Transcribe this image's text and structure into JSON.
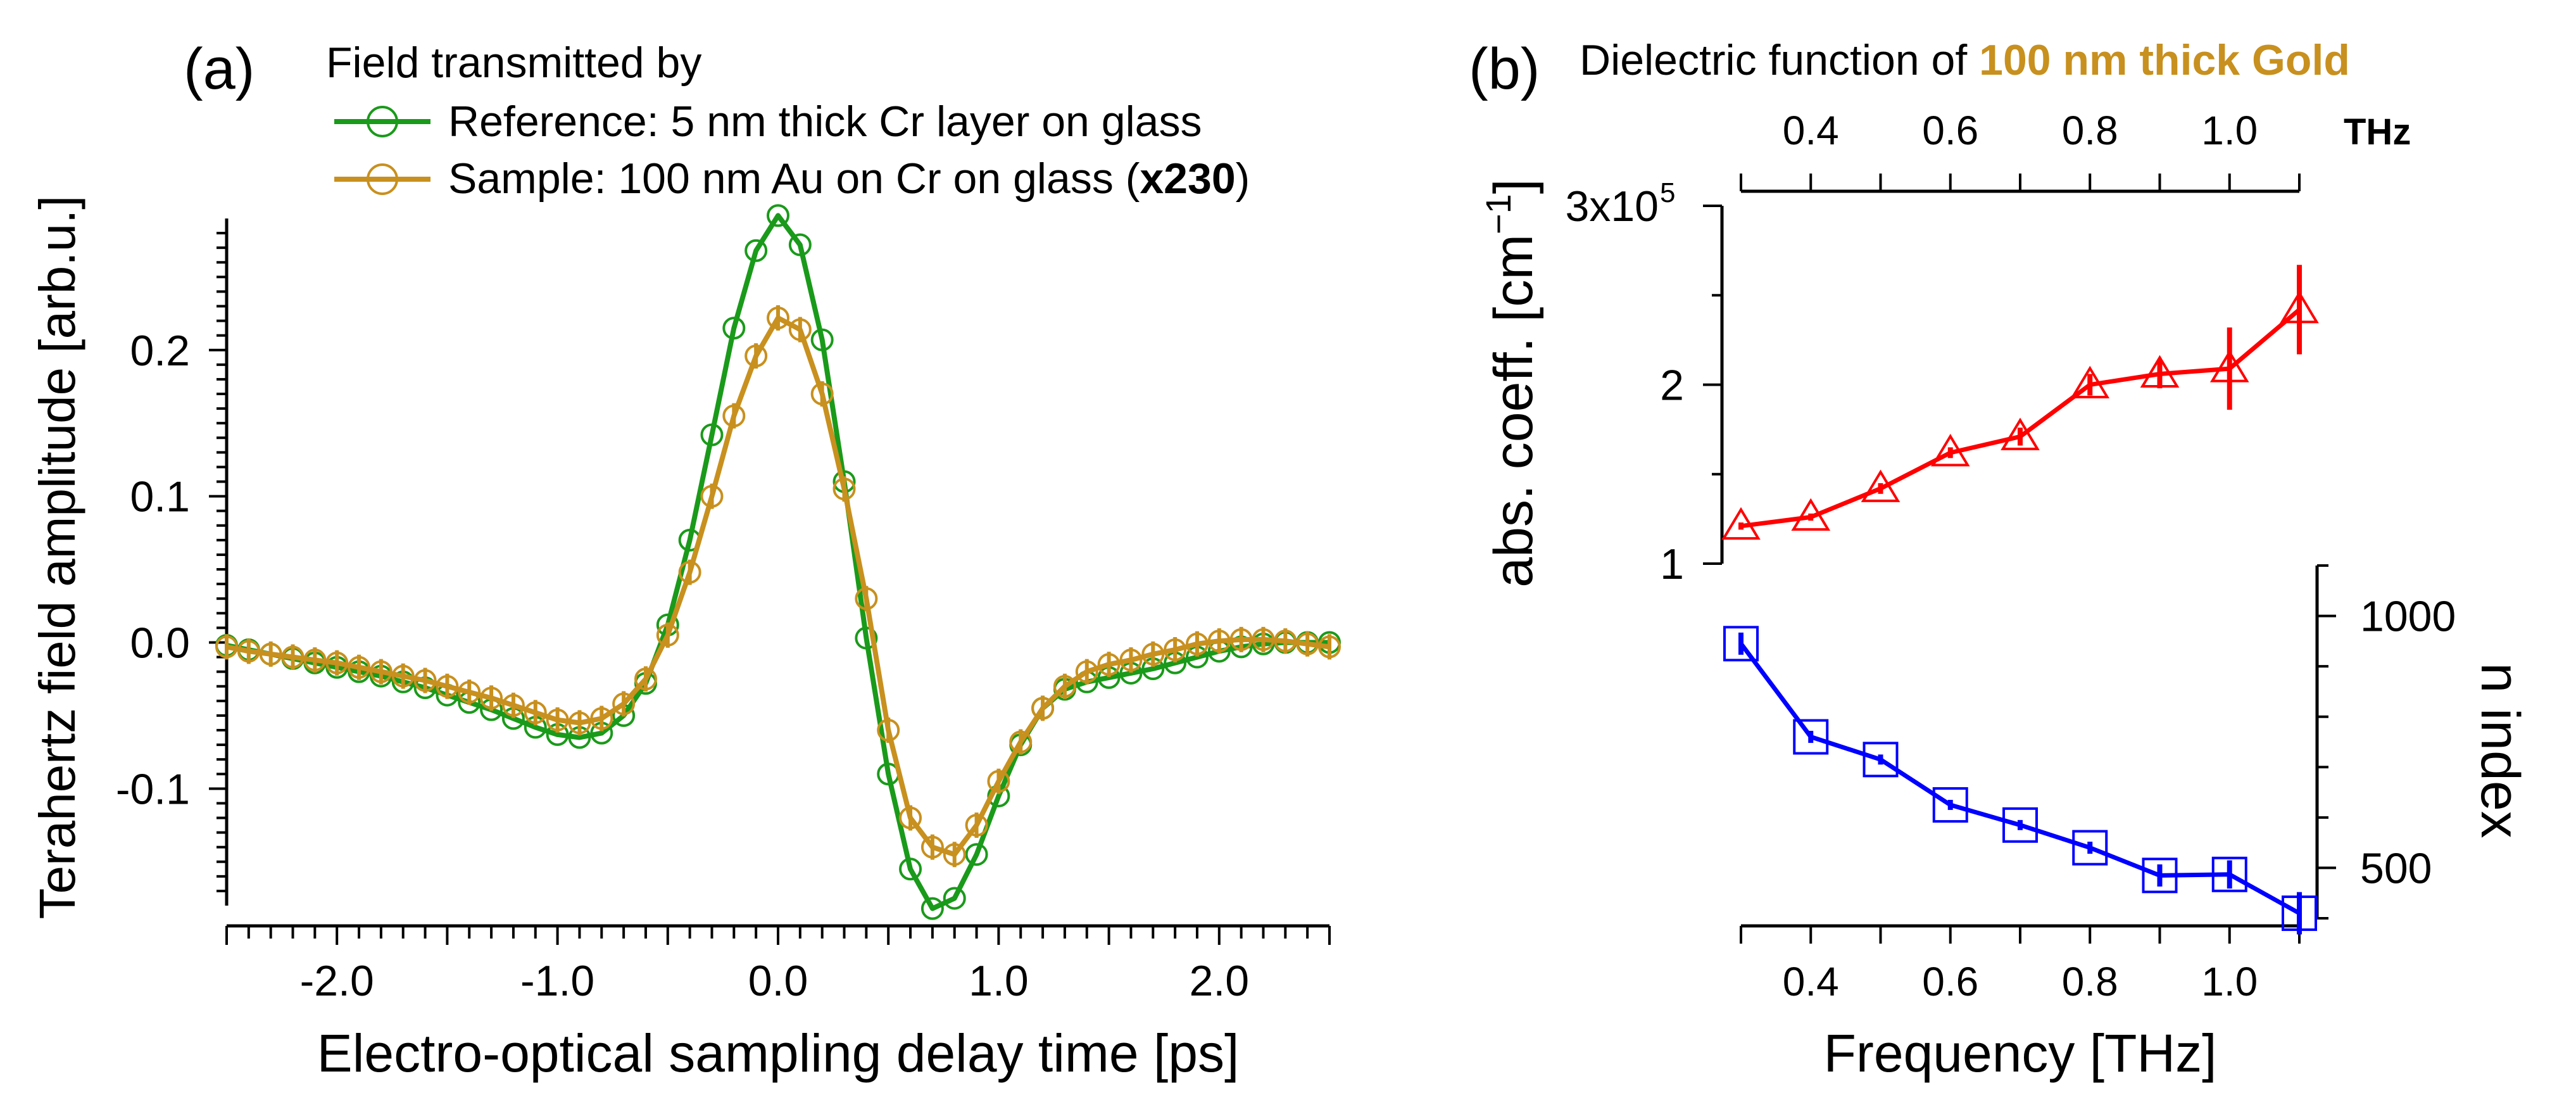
{
  "chart_data": [
    {
      "panel": "(a)",
      "type": "line",
      "legend_title": "Field transmitted by",
      "legend_position": "top",
      "xlabel": "Electro-optical sampling delay time [ps]",
      "ylabel": "Terahertz field amplitude [arb.u.]",
      "xlim": [
        -2.5,
        2.5
      ],
      "ylim": [
        -0.18,
        0.29
      ],
      "x_ticks": [
        -2.0,
        -1.0,
        0.0,
        1.0,
        2.0
      ],
      "x_tick_labels": [
        "-2.0",
        "-1.0",
        "0.0",
        "1.0",
        "2.0"
      ],
      "y_ticks": [
        -0.1,
        0.0,
        0.1,
        0.2
      ],
      "y_tick_labels": [
        "-0.1",
        "0.0",
        "0.1",
        "0.2"
      ],
      "series": [
        {
          "name": "Reference: 5 nm thick Cr layer on glass",
          "label_plain": "Reference: 5 nm thick Cr layer on glass",
          "color": "#1a9a1a",
          "marker": "circle",
          "x": [
            -2.5,
            -2.4,
            -2.3,
            -2.2,
            -2.1,
            -2.0,
            -1.9,
            -1.8,
            -1.7,
            -1.6,
            -1.5,
            -1.4,
            -1.3,
            -1.2,
            -1.1,
            -1.0,
            -0.9,
            -0.8,
            -0.7,
            -0.6,
            -0.5,
            -0.4,
            -0.3,
            -0.2,
            -0.1,
            0.0,
            0.1,
            0.2,
            0.3,
            0.4,
            0.5,
            0.6,
            0.7,
            0.8,
            0.9,
            1.0,
            1.1,
            1.2,
            1.3,
            1.4,
            1.5,
            1.6,
            1.7,
            1.8,
            1.9,
            2.0,
            2.1,
            2.2,
            2.3,
            2.4,
            2.5
          ],
          "y": [
            -0.002,
            -0.005,
            -0.008,
            -0.011,
            -0.014,
            -0.017,
            -0.02,
            -0.023,
            -0.027,
            -0.031,
            -0.036,
            -0.041,
            -0.046,
            -0.052,
            -0.058,
            -0.063,
            -0.065,
            -0.062,
            -0.05,
            -0.028,
            0.012,
            0.07,
            0.142,
            0.215,
            0.268,
            0.292,
            0.272,
            0.207,
            0.11,
            0.003,
            -0.09,
            -0.155,
            -0.182,
            -0.175,
            -0.145,
            -0.105,
            -0.07,
            -0.045,
            -0.032,
            -0.027,
            -0.024,
            -0.021,
            -0.018,
            -0.014,
            -0.01,
            -0.006,
            -0.003,
            -0.001,
            0.0,
            0.0,
            0.0
          ]
        },
        {
          "name_prefix": "Sample: 100 nm Au on Cr on glass (",
          "name_bold": "x230",
          "name_suffix": ")",
          "label_plain": "Sample: 100 nm Au on Cr on glass (x230)",
          "color": "#c8901e",
          "marker": "circle",
          "x": [
            -2.5,
            -2.4,
            -2.3,
            -2.2,
            -2.1,
            -2.0,
            -1.9,
            -1.8,
            -1.7,
            -1.6,
            -1.5,
            -1.4,
            -1.3,
            -1.2,
            -1.1,
            -1.0,
            -0.9,
            -0.8,
            -0.7,
            -0.6,
            -0.5,
            -0.4,
            -0.3,
            -0.2,
            -0.1,
            0.0,
            0.1,
            0.2,
            0.3,
            0.4,
            0.5,
            0.6,
            0.7,
            0.8,
            0.9,
            1.0,
            1.1,
            1.2,
            1.3,
            1.4,
            1.5,
            1.6,
            1.7,
            1.8,
            1.9,
            2.0,
            2.1,
            2.2,
            2.3,
            2.4,
            2.5
          ],
          "y": [
            -0.003,
            -0.006,
            -0.008,
            -0.01,
            -0.012,
            -0.014,
            -0.017,
            -0.02,
            -0.023,
            -0.026,
            -0.03,
            -0.034,
            -0.038,
            -0.043,
            -0.048,
            -0.053,
            -0.055,
            -0.052,
            -0.042,
            -0.025,
            0.005,
            0.048,
            0.1,
            0.155,
            0.196,
            0.222,
            0.214,
            0.17,
            0.105,
            0.03,
            -0.06,
            -0.12,
            -0.14,
            -0.145,
            -0.125,
            -0.095,
            -0.068,
            -0.045,
            -0.03,
            -0.02,
            -0.015,
            -0.012,
            -0.008,
            -0.005,
            -0.001,
            0.001,
            0.002,
            0.002,
            0.001,
            -0.001,
            -0.003
          ]
        }
      ]
    },
    {
      "panel": "(b)",
      "type": "line",
      "title_prefix": "Dielectric function of ",
      "title_highlight": "100 nm thick Gold",
      "title_highlight_color": "#c8901e",
      "xlabel": "Frequency [THz]",
      "xlim": [
        0.3,
        1.1
      ],
      "x_ticks": [
        0.4,
        0.6,
        0.8,
        1.0
      ],
      "x_tick_labels": [
        "0.4",
        "0.6",
        "0.8",
        "1.0"
      ],
      "top_axis_unit": "THz",
      "series": [
        {
          "name": "abs. coeff.",
          "ylabel": "abs. coeff. [cm",
          "ylabel_exp": "−1",
          "ylabel_close": "]",
          "color": "#ff0000",
          "marker": "triangle",
          "axis": "left",
          "ylim": [
            100000,
            300000
          ],
          "y_ticks": [
            100000,
            200000,
            300000
          ],
          "y_tick_labels": [
            "1",
            "2",
            "3x10"
          ],
          "y_tick_exp": "5",
          "x": [
            0.3,
            0.4,
            0.5,
            0.6,
            0.7,
            0.8,
            0.9,
            1.0,
            1.1
          ],
          "y": [
            121000,
            126000,
            142000,
            162000,
            171000,
            200000,
            206000,
            209000,
            242000
          ],
          "err": [
            2000,
            2000,
            3000,
            3000,
            5000,
            6000,
            8000,
            23000,
            25000
          ]
        },
        {
          "name": "n index",
          "ylabel": "n index",
          "color": "#0000ff",
          "marker": "square",
          "axis": "right",
          "ylim": [
            400,
            1100
          ],
          "y_ticks": [
            500,
            1000
          ],
          "y_tick_labels": [
            "500",
            "1000"
          ],
          "x": [
            0.3,
            0.4,
            0.5,
            0.6,
            0.7,
            0.8,
            0.9,
            1.0,
            1.1
          ],
          "y": [
            945,
            760,
            715,
            625,
            585,
            540,
            485,
            487,
            410
          ],
          "err": [
            22,
            12,
            10,
            10,
            10,
            12,
            22,
            28,
            42
          ]
        }
      ]
    }
  ]
}
